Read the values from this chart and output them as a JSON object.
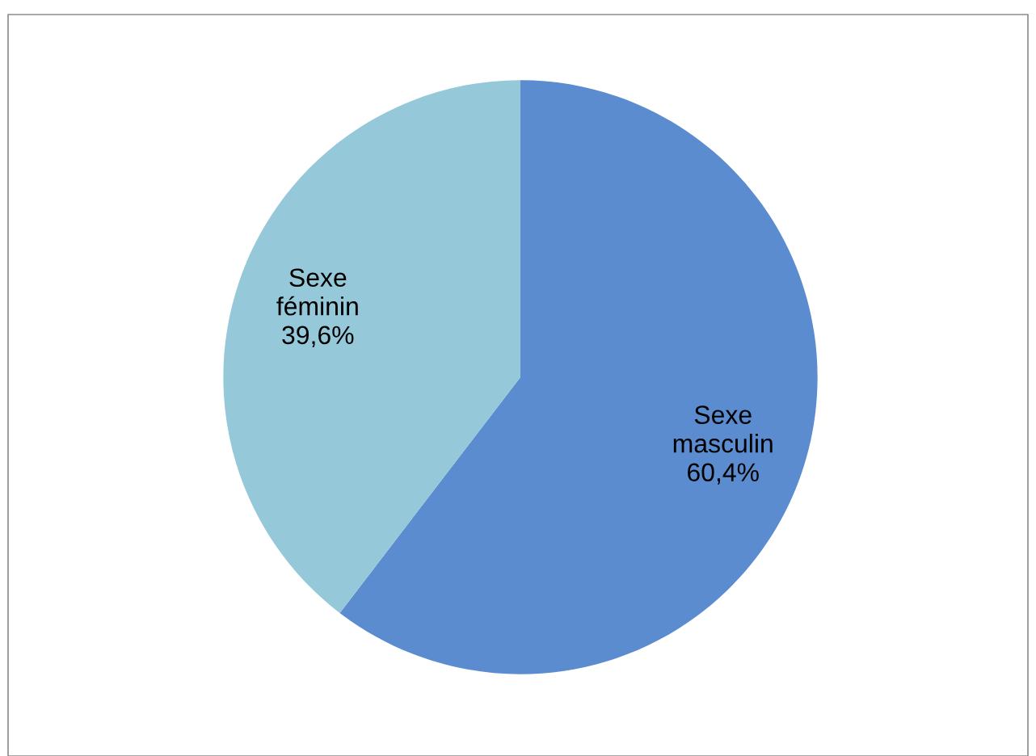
{
  "chart_data": {
    "type": "pie",
    "categories": [
      "Sexe masculin",
      "Sexe féminin"
    ],
    "values": [
      60.4,
      39.6
    ],
    "value_labels": [
      "60,4%",
      "39,6%"
    ],
    "colors": [
      "#5a8ccf",
      "#95c8d9"
    ],
    "legend": false
  }
}
